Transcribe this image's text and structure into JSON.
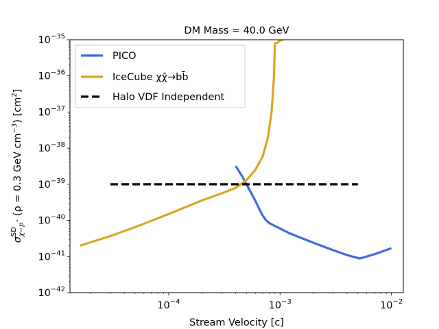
{
  "chart_data": {
    "type": "line",
    "title": "DM Mass = 40.0 GeV",
    "xlabel": "Stream Velocity [c]",
    "ylabel": {
      "sigma": "σ",
      "sup": "SD",
      "sub": "χ−p",
      "rest": "· (ρ = 0.3 GeV cm",
      "rest_sup": "−3",
      "rest2": ") [cm",
      "rest2_sup": "2",
      "rest3": "]"
    },
    "xscale": "log",
    "yscale": "log",
    "xlim": [
      1.3e-05,
      0.0128
    ],
    "ylim": [
      1e-42,
      1e-35
    ],
    "xticks": [
      {
        "value": 0.0001,
        "base": "10",
        "exp": "−4"
      },
      {
        "value": 0.001,
        "base": "10",
        "exp": "−3"
      },
      {
        "value": 0.01,
        "base": "10",
        "exp": "−2"
      }
    ],
    "yticks": [
      {
        "value": 1e-42,
        "base": "10",
        "exp": "−42"
      },
      {
        "value": 1e-41,
        "base": "10",
        "exp": "−41"
      },
      {
        "value": 1e-40,
        "base": "10",
        "exp": "−40"
      },
      {
        "value": 1e-39,
        "base": "10",
        "exp": "−39"
      },
      {
        "value": 1e-38,
        "base": "10",
        "exp": "−38"
      },
      {
        "value": 1e-37,
        "base": "10",
        "exp": "−37"
      },
      {
        "value": 1e-36,
        "base": "10",
        "exp": "−36"
      },
      {
        "value": 1e-35,
        "base": "10",
        "exp": "−35"
      }
    ],
    "legend_position": "top-left",
    "series": [
      {
        "name": "PICO",
        "label": "PICO",
        "color": "#4169e1",
        "dash": "solid",
        "x": [
          0.0004,
          0.00045,
          0.0005,
          0.00055,
          0.0006,
          0.00065,
          0.0007,
          0.00075,
          0.0008,
          0.0009,
          0.001,
          0.0012,
          0.0015,
          0.002,
          0.003,
          0.004,
          0.0052,
          0.007,
          0.01
        ],
        "y": [
          3.2e-39,
          1.8e-39,
          1e-39,
          5.8e-40,
          3.5e-40,
          2.1e-40,
          1.35e-40,
          1e-40,
          8.5e-41,
          7e-41,
          6e-41,
          4.5e-41,
          3.4e-41,
          2.4e-41,
          1.5e-41,
          1.1e-41,
          8.8e-42,
          1.15e-41,
          1.7e-41
        ]
      },
      {
        "name": "IceCube",
        "label": "IceCube  χχ̄→bb̄",
        "color": "#daa520",
        "dash": "solid",
        "x": [
          1.6e-05,
          3e-05,
          5e-05,
          0.0001,
          0.0002,
          0.0003,
          0.0004,
          0.0005,
          0.0006,
          0.0007,
          0.00078,
          0.00084,
          0.00088,
          0.0009,
          0.00092,
          0.00093,
          0.001,
          0.0011
        ],
        "y": [
          2e-41,
          3.7e-41,
          6.5e-41,
          1.5e-40,
          3.6e-40,
          5.6e-40,
          8e-40,
          1.3e-39,
          2.5e-39,
          6e-39,
          2e-38,
          1e-37,
          8e-37,
          8e-36,
          8e-36,
          8e-36,
          9.5e-36,
          1.05e-35
        ]
      },
      {
        "name": "Halo VDF Independent",
        "label": "Halo VDF Independent",
        "color": "#000000",
        "dash": "dashed",
        "x": [
          3e-05,
          0.005
        ],
        "y": [
          1e-39,
          1e-39
        ]
      }
    ]
  }
}
